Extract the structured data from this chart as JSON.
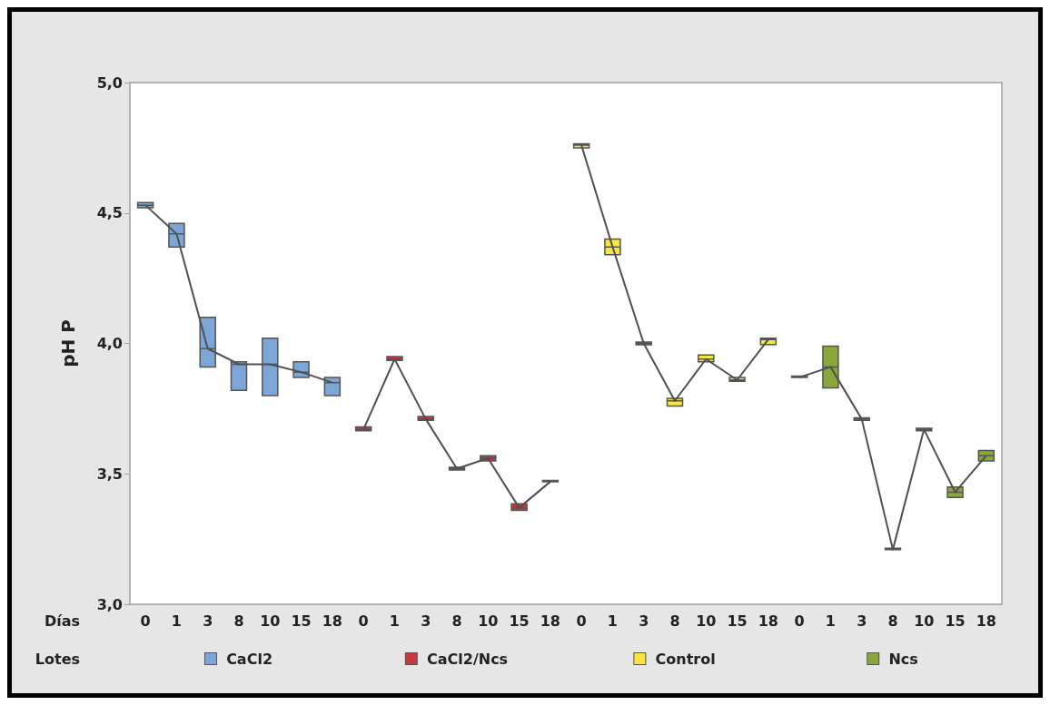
{
  "chart_data": {
    "type": "box",
    "ylabel": "pH P",
    "xlabel": "Días",
    "legend_title": "Lotes",
    "categories": [
      "0",
      "1",
      "3",
      "8",
      "10",
      "15",
      "18",
      "0",
      "1",
      "3",
      "8",
      "10",
      "15",
      "18",
      "0",
      "1",
      "3",
      "8",
      "10",
      "15",
      "18",
      "0",
      "1",
      "3",
      "8",
      "10",
      "15",
      "18"
    ],
    "ylim": [
      3,
      5
    ],
    "yticks": [
      {
        "value": 3,
        "label": "3,0"
      },
      {
        "value": 3.5,
        "label": "3,5"
      },
      {
        "value": 4,
        "label": "4,0"
      },
      {
        "value": 4.5,
        "label": "4,5"
      },
      {
        "value": 5,
        "label": "5,0"
      }
    ],
    "grid": false,
    "legend": "bottom",
    "series": [
      {
        "name": "CaCl2",
        "color": "#7ca6d8",
        "boxes": [
          {
            "low": 4.52,
            "q1": 4.52,
            "median": 4.53,
            "q3": 4.54,
            "high": 4.54
          },
          {
            "low": 4.37,
            "q1": 4.37,
            "median": 4.42,
            "q3": 4.46,
            "high": 4.46
          },
          {
            "low": 3.91,
            "q1": 3.91,
            "median": 3.98,
            "q3": 4.1,
            "high": 4.1
          },
          {
            "low": 3.82,
            "q1": 3.82,
            "median": 3.92,
            "q3": 3.93,
            "high": 3.93
          },
          {
            "low": 3.8,
            "q1": 3.8,
            "median": 3.92,
            "q3": 4.02,
            "high": 4.02
          },
          {
            "low": 3.87,
            "q1": 3.87,
            "median": 3.89,
            "q3": 3.93,
            "high": 3.93
          },
          {
            "low": 3.8,
            "q1": 3.8,
            "median": 3.85,
            "q3": 3.87,
            "high": 3.87
          },
          null,
          null,
          null,
          null,
          null,
          null,
          null,
          null,
          null,
          null,
          null,
          null,
          null,
          null,
          null,
          null,
          null,
          null,
          null,
          null,
          null
        ]
      },
      {
        "name": "CaCl2/Ncs",
        "color": "#c8363e",
        "boxes": [
          null,
          null,
          null,
          null,
          null,
          null,
          null,
          {
            "low": 3.665,
            "q1": 3.665,
            "median": 3.67,
            "q3": 3.68,
            "high": 3.68
          },
          {
            "low": 3.935,
            "q1": 3.935,
            "median": 3.94,
            "q3": 3.95,
            "high": 3.95
          },
          {
            "low": 3.705,
            "q1": 3.705,
            "median": 3.71,
            "q3": 3.72,
            "high": 3.72
          },
          {
            "low": 3.515,
            "q1": 3.515,
            "median": 3.52,
            "q3": 3.525,
            "high": 3.525
          },
          {
            "low": 3.55,
            "q1": 3.55,
            "median": 3.56,
            "q3": 3.57,
            "high": 3.57
          },
          {
            "low": 3.36,
            "q1": 3.36,
            "median": 3.37,
            "q3": 3.385,
            "high": 3.385
          },
          {
            "low": 3.47,
            "q1": 3.47,
            "median": 3.47,
            "q3": 3.475,
            "high": 3.475
          },
          null,
          null,
          null,
          null,
          null,
          null,
          null,
          null,
          null,
          null,
          null,
          null,
          null,
          null
        ]
      },
      {
        "name": "Control",
        "color": "#f8e640",
        "boxes": [
          null,
          null,
          null,
          null,
          null,
          null,
          null,
          null,
          null,
          null,
          null,
          null,
          null,
          null,
          {
            "low": 4.75,
            "q1": 4.75,
            "median": 4.76,
            "q3": 4.765,
            "high": 4.765
          },
          {
            "low": 4.34,
            "q1": 4.34,
            "median": 4.37,
            "q3": 4.4,
            "high": 4.4
          },
          {
            "low": 3.995,
            "q1": 3.995,
            "median": 4.0,
            "q3": 4.005,
            "high": 4.005
          },
          {
            "low": 3.76,
            "q1": 3.76,
            "median": 3.78,
            "q3": 3.79,
            "high": 3.79
          },
          {
            "low": 3.93,
            "q1": 3.93,
            "median": 3.94,
            "q3": 3.956,
            "high": 3.956
          },
          {
            "low": 3.855,
            "q1": 3.855,
            "median": 3.86,
            "q3": 3.87,
            "high": 3.87
          },
          {
            "low": 3.996,
            "q1": 3.996,
            "median": 4.015,
            "q3": 4.02,
            "high": 4.02
          },
          null,
          null,
          null,
          null,
          null,
          null,
          null
        ]
      },
      {
        "name": "Ncs",
        "color": "#8aa83a",
        "boxes": [
          null,
          null,
          null,
          null,
          null,
          null,
          null,
          null,
          null,
          null,
          null,
          null,
          null,
          null,
          null,
          null,
          null,
          null,
          null,
          null,
          null,
          {
            "low": 3.87,
            "q1": 3.87,
            "median": 3.87,
            "q3": 3.875,
            "high": 3.875
          },
          {
            "low": 3.83,
            "q1": 3.83,
            "median": 3.91,
            "q3": 3.99,
            "high": 3.99
          },
          {
            "low": 3.705,
            "q1": 3.705,
            "median": 3.71,
            "q3": 3.715,
            "high": 3.715
          },
          {
            "low": 3.21,
            "q1": 3.21,
            "median": 3.21,
            "q3": 3.215,
            "high": 3.215
          },
          {
            "low": 3.665,
            "q1": 3.665,
            "median": 3.67,
            "q3": 3.675,
            "high": 3.675
          },
          {
            "low": 3.41,
            "q1": 3.41,
            "median": 3.43,
            "q3": 3.45,
            "high": 3.45
          },
          {
            "low": 3.55,
            "q1": 3.55,
            "median": 3.57,
            "q3": 3.59,
            "high": 3.59
          }
        ]
      },
      {
        "type": "line",
        "color": "#505050",
        "values": [
          4.53,
          4.42,
          3.98,
          3.92,
          3.92,
          3.89,
          3.85,
          null,
          null,
          null,
          null,
          null,
          null,
          null,
          null,
          null,
          null,
          null,
          null,
          null,
          null,
          null,
          null,
          null,
          null,
          null,
          null,
          null
        ]
      },
      {
        "type": "line",
        "color": "#505050",
        "values": [
          null,
          null,
          null,
          null,
          null,
          null,
          null,
          3.67,
          3.94,
          3.71,
          3.52,
          3.56,
          3.37,
          3.47,
          null,
          null,
          null,
          null,
          null,
          null,
          null,
          null,
          null,
          null,
          null,
          null,
          null,
          null
        ]
      },
      {
        "type": "line",
        "color": "#505050",
        "values": [
          null,
          null,
          null,
          null,
          null,
          null,
          null,
          null,
          null,
          null,
          null,
          null,
          null,
          null,
          4.76,
          4.37,
          4.0,
          3.78,
          3.94,
          3.86,
          4.015,
          null,
          null,
          null,
          null,
          null,
          null,
          null
        ]
      },
      {
        "type": "line",
        "color": "#505050",
        "values": [
          null,
          null,
          null,
          null,
          null,
          null,
          null,
          null,
          null,
          null,
          null,
          null,
          null,
          null,
          null,
          null,
          null,
          null,
          null,
          null,
          null,
          3.87,
          3.91,
          3.71,
          3.21,
          3.67,
          3.43,
          3.57
        ]
      }
    ]
  }
}
